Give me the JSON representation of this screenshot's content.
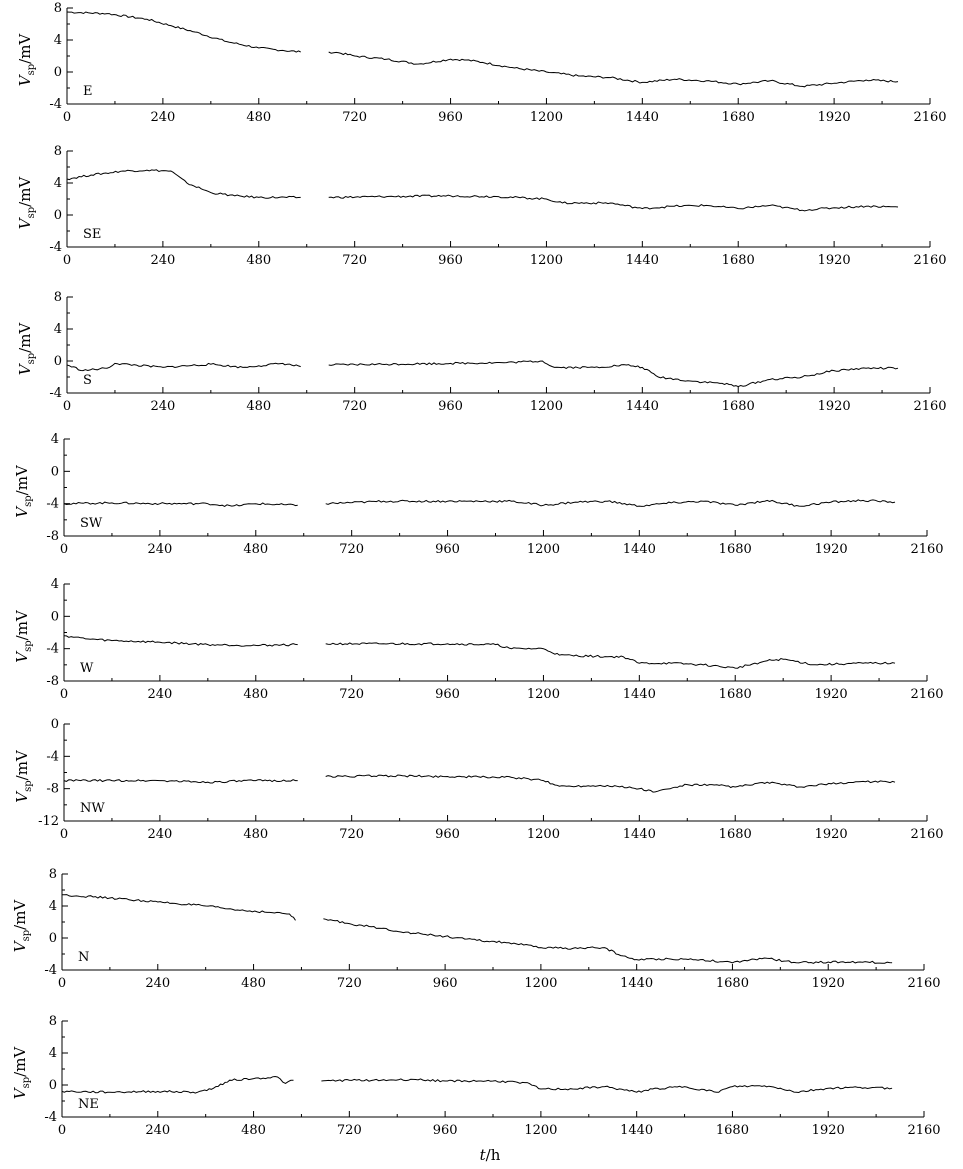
{
  "figure": {
    "ylabel": {
      "v": "V",
      "sub": "sp",
      "unit": "/mV"
    },
    "xlabel": {
      "t": "t",
      "unit": "/h"
    }
  },
  "chart_data": [
    {
      "type": "line",
      "station": "E",
      "xlim": [
        0,
        2160
      ],
      "ylim": [
        -4,
        8
      ],
      "xticks": [
        0,
        240,
        480,
        720,
        960,
        1200,
        1440,
        1680,
        1920,
        2160
      ],
      "yticks": [
        -4,
        0,
        4,
        8
      ],
      "gap": [
        585,
        655
      ],
      "series": [
        {
          "x": [
            0,
            100,
            200,
            260,
            320,
            400,
            480,
            540,
            585
          ],
          "y": [
            7.5,
            7.3,
            6.6,
            5.8,
            5.0,
            3.8,
            3.0,
            2.7,
            2.5
          ]
        },
        {
          "x": [
            655,
            680,
            720,
            800,
            880,
            960,
            1000,
            1040,
            1120,
            1200,
            1280,
            1360,
            1440,
            1520,
            1600,
            1680,
            1760,
            1840,
            1920,
            2000,
            2080
          ],
          "y": [
            2.5,
            2.4,
            2.0,
            1.6,
            1.0,
            1.6,
            1.5,
            1.2,
            0.5,
            0.0,
            -0.5,
            -0.7,
            -1.3,
            -0.9,
            -1.1,
            -1.5,
            -1.1,
            -1.8,
            -1.4,
            -1.0,
            -1.2
          ]
        }
      ]
    },
    {
      "type": "line",
      "station": "SE",
      "xlim": [
        0,
        2160
      ],
      "ylim": [
        -4,
        8
      ],
      "xticks": [
        0,
        240,
        480,
        720,
        960,
        1200,
        1440,
        1680,
        1920,
        2160
      ],
      "yticks": [
        -4,
        0,
        4,
        8
      ],
      "gap": [
        585,
        655
      ],
      "series": [
        {
          "x": [
            0,
            60,
            140,
            200,
            260,
            300,
            360,
            420,
            480,
            585
          ],
          "y": [
            4.5,
            5.0,
            5.5,
            5.6,
            5.5,
            4.0,
            2.8,
            2.4,
            2.2,
            2.2
          ]
        },
        {
          "x": [
            655,
            800,
            960,
            1080,
            1200,
            1240,
            1360,
            1440,
            1520,
            1600,
            1680,
            1760,
            1840,
            1920,
            2000,
            2080
          ],
          "y": [
            2.2,
            2.3,
            2.4,
            2.3,
            2.0,
            1.5,
            1.5,
            0.8,
            1.1,
            1.2,
            0.8,
            1.2,
            0.6,
            0.9,
            1.1,
            1.0
          ]
        }
      ]
    },
    {
      "type": "line",
      "station": "S",
      "xlim": [
        0,
        2160
      ],
      "ylim": [
        -4,
        8
      ],
      "xticks": [
        0,
        240,
        480,
        720,
        960,
        1200,
        1440,
        1680,
        1920,
        2160
      ],
      "yticks": [
        -4,
        0,
        4,
        8
      ],
      "gap": [
        585,
        655
      ],
      "series": [
        {
          "x": [
            0,
            40,
            100,
            120,
            240,
            360,
            440,
            480,
            540,
            585
          ],
          "y": [
            -0.5,
            -1.2,
            -0.9,
            -0.3,
            -0.8,
            -0.4,
            -0.8,
            -0.6,
            -0.3,
            -0.7
          ]
        },
        {
          "x": [
            655,
            800,
            960,
            1100,
            1190,
            1220,
            1320,
            1400,
            1440,
            1480,
            1560,
            1640,
            1680,
            1760,
            1840,
            1920,
            2000,
            2080
          ],
          "y": [
            -0.5,
            -0.4,
            -0.3,
            -0.2,
            0.0,
            -0.8,
            -0.8,
            -0.5,
            -0.8,
            -2.0,
            -2.5,
            -2.8,
            -3.2,
            -2.3,
            -2.0,
            -1.2,
            -0.9,
            -0.9
          ]
        }
      ]
    },
    {
      "type": "line",
      "station": "SW",
      "xlim": [
        0,
        2160
      ],
      "ylim": [
        -8,
        4
      ],
      "xticks": [
        0,
        240,
        480,
        720,
        960,
        1200,
        1440,
        1680,
        1920,
        2160
      ],
      "yticks": [
        -8,
        -4,
        0,
        4
      ],
      "gap": [
        585,
        655
      ],
      "series": [
        {
          "x": [
            0,
            120,
            240,
            360,
            420,
            480,
            585
          ],
          "y": [
            -4.0,
            -3.9,
            -4.0,
            -4.0,
            -4.3,
            -4.0,
            -4.2
          ]
        },
        {
          "x": [
            655,
            800,
            960,
            1120,
            1200,
            1280,
            1360,
            1440,
            1520,
            1600,
            1680,
            1760,
            1840,
            1920,
            2000,
            2080
          ],
          "y": [
            -4.0,
            -3.7,
            -3.7,
            -3.7,
            -4.2,
            -3.8,
            -3.7,
            -4.3,
            -3.9,
            -3.7,
            -4.2,
            -3.6,
            -4.3,
            -3.8,
            -3.6,
            -3.8
          ]
        }
      ]
    },
    {
      "type": "line",
      "station": "W",
      "xlim": [
        0,
        2160
      ],
      "ylim": [
        -8,
        4
      ],
      "xticks": [
        0,
        240,
        480,
        720,
        960,
        1200,
        1440,
        1680,
        1920,
        2160
      ],
      "yticks": [
        -8,
        -4,
        0,
        4
      ],
      "gap": [
        585,
        655
      ],
      "series": [
        {
          "x": [
            0,
            60,
            120,
            240,
            360,
            480,
            585
          ],
          "y": [
            -2.4,
            -2.8,
            -3.0,
            -3.2,
            -3.5,
            -3.6,
            -3.5
          ]
        },
        {
          "x": [
            655,
            800,
            960,
            1080,
            1120,
            1200,
            1240,
            1360,
            1400,
            1440,
            1520,
            1600,
            1680,
            1760,
            1800,
            1880,
            2000,
            2080
          ],
          "y": [
            -3.4,
            -3.4,
            -3.4,
            -3.5,
            -4.0,
            -4.0,
            -4.8,
            -5.0,
            -5.0,
            -5.8,
            -5.8,
            -6.0,
            -6.4,
            -5.5,
            -5.3,
            -6.0,
            -5.8,
            -5.8
          ]
        }
      ]
    },
    {
      "type": "line",
      "station": "NW",
      "xlim": [
        0,
        2160
      ],
      "ylim": [
        -12,
        0
      ],
      "xticks": [
        0,
        240,
        480,
        720,
        960,
        1200,
        1440,
        1680,
        1920,
        2160
      ],
      "yticks": [
        -12,
        -8,
        -4,
        0
      ],
      "gap": [
        585,
        655
      ],
      "series": [
        {
          "x": [
            0,
            120,
            240,
            360,
            480,
            585
          ],
          "y": [
            -7.0,
            -7.0,
            -7.0,
            -7.2,
            -7.0,
            -7.0
          ]
        },
        {
          "x": [
            655,
            800,
            960,
            1120,
            1200,
            1240,
            1360,
            1440,
            1480,
            1560,
            1640,
            1680,
            1760,
            1840,
            1920,
            2000,
            2080
          ],
          "y": [
            -6.5,
            -6.4,
            -6.5,
            -6.6,
            -7.0,
            -7.7,
            -7.6,
            -8.0,
            -8.4,
            -7.5,
            -7.6,
            -7.8,
            -7.2,
            -7.8,
            -7.4,
            -7.1,
            -7.2
          ]
        }
      ]
    },
    {
      "type": "line",
      "station": "N",
      "xlim": [
        0,
        2160
      ],
      "ylim": [
        -4,
        8
      ],
      "xticks": [
        0,
        240,
        480,
        720,
        960,
        1200,
        1440,
        1680,
        1920,
        2160
      ],
      "yticks": [
        -4,
        0,
        4,
        8
      ],
      "gap": [
        585,
        655
      ],
      "series": [
        {
          "x": [
            0,
            120,
            240,
            360,
            440,
            520,
            570,
            585
          ],
          "y": [
            5.4,
            5.0,
            4.5,
            4.0,
            3.5,
            3.2,
            3.0,
            2.2
          ]
        },
        {
          "x": [
            655,
            720,
            800,
            880,
            960,
            1040,
            1120,
            1200,
            1280,
            1360,
            1400,
            1440,
            1520,
            1600,
            1680,
            1760,
            1840,
            1920,
            2000,
            2080
          ],
          "y": [
            2.4,
            1.8,
            1.2,
            0.6,
            0.2,
            -0.3,
            -0.6,
            -1.2,
            -1.3,
            -1.2,
            -2.2,
            -2.7,
            -2.6,
            -2.7,
            -3.1,
            -2.5,
            -3.1,
            -3.0,
            -3.0,
            -3.1
          ]
        }
      ]
    },
    {
      "type": "line",
      "station": "NE",
      "xlim": [
        0,
        2160
      ],
      "ylim": [
        -4,
        8
      ],
      "xticks": [
        0,
        240,
        480,
        720,
        960,
        1200,
        1440,
        1680,
        1920,
        2160
      ],
      "yticks": [
        -4,
        0,
        4,
        8
      ],
      "gap": [
        580,
        650
      ],
      "series": [
        {
          "x": [
            0,
            120,
            240,
            340,
            380,
            420,
            480,
            540,
            560,
            580
          ],
          "y": [
            -0.8,
            -0.9,
            -0.8,
            -0.9,
            -0.4,
            0.6,
            0.8,
            1.0,
            0.2,
            0.6
          ]
        },
        {
          "x": [
            650,
            720,
            800,
            880,
            960,
            1080,
            1160,
            1200,
            1280,
            1360,
            1440,
            1480,
            1560,
            1640,
            1680,
            1760,
            1800,
            1840,
            1920,
            2000,
            2080
          ],
          "y": [
            0.5,
            0.6,
            0.6,
            0.7,
            0.5,
            0.5,
            0.3,
            -0.5,
            -0.5,
            -0.2,
            -0.9,
            -0.5,
            -0.2,
            -0.9,
            -0.2,
            -0.1,
            -0.4,
            -0.9,
            -0.4,
            -0.3,
            -0.4
          ]
        }
      ]
    }
  ]
}
